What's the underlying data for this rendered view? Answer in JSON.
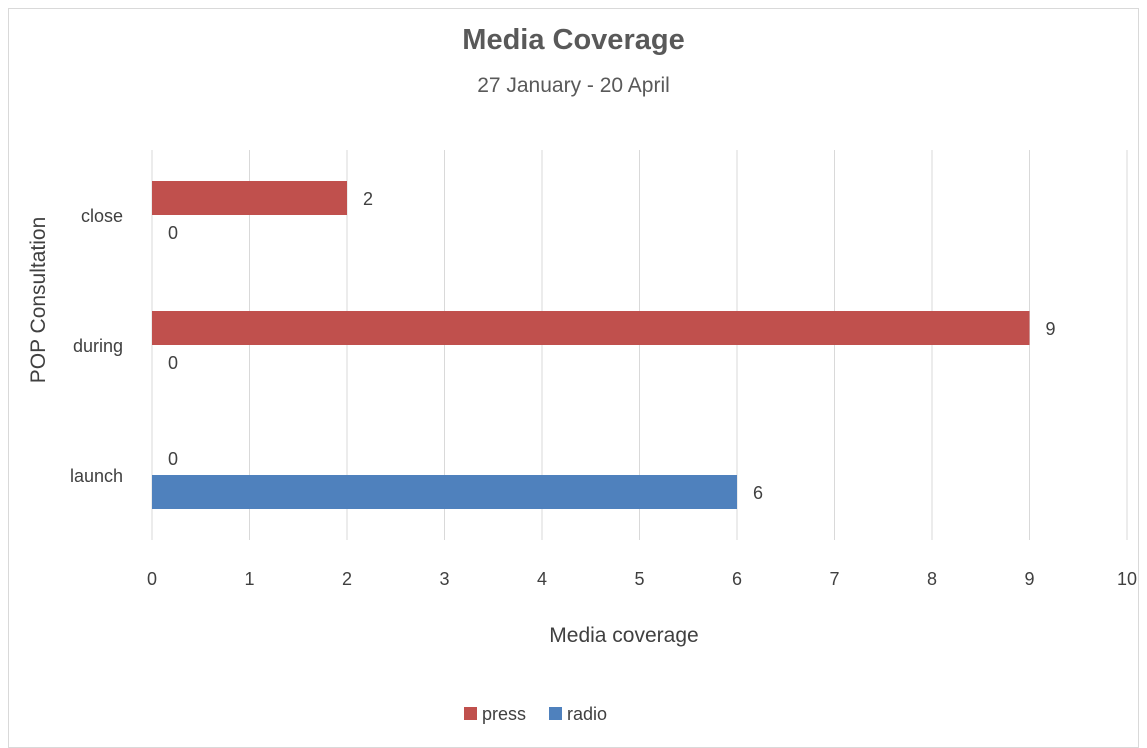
{
  "chart_data": {
    "type": "bar",
    "orientation": "horizontal",
    "title": "Media Coverage",
    "subtitle": "27 January - 20 April",
    "xlabel": "Media coverage",
    "ylabel": "POP Consultation",
    "categories": [
      "launch",
      "during",
      "close"
    ],
    "series": [
      {
        "name": "press",
        "color": "#c0504d",
        "values": [
          0,
          9,
          2
        ]
      },
      {
        "name": "radio",
        "color": "#4f81bd",
        "values": [
          6,
          0,
          0
        ]
      }
    ],
    "xlim": [
      0,
      10
    ],
    "xticks": [
      "0",
      "1",
      "2",
      "3",
      "4",
      "5",
      "6",
      "7",
      "8",
      "9",
      "10"
    ],
    "grid": true,
    "legend_position": "bottom"
  }
}
